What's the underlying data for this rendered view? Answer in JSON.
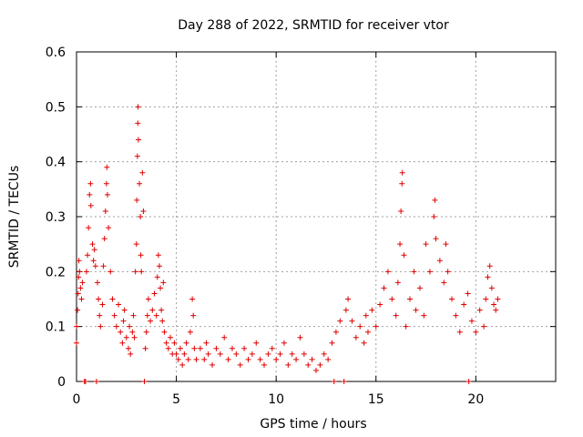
{
  "chart_data": {
    "type": "scatter",
    "title": "Day 288 of 2022, SRMTID for receiver vtor",
    "xlabel": "GPS time / hours",
    "ylabel": "SRMTID / TECUs",
    "xlim": [
      0,
      24
    ],
    "ylim": [
      0,
      0.6
    ],
    "xticks": [
      0,
      5,
      10,
      15,
      20
    ],
    "xtick_labels": [
      "0",
      "5",
      "10",
      "15",
      "20"
    ],
    "yticks": [
      0,
      0.1,
      0.2,
      0.3,
      0.4,
      0.5,
      0.6
    ],
    "ytick_labels": [
      "0",
      "0.1",
      "0.2",
      "0.3",
      "0.4",
      "0.5",
      "0.6"
    ],
    "grid": true,
    "marker": "+",
    "color": "#e00000",
    "series": [
      {
        "name": "SRMTID",
        "points": [
          [
            0.0,
            0.07
          ],
          [
            0.0,
            0.1
          ],
          [
            0.05,
            0.13
          ],
          [
            0.08,
            0.16
          ],
          [
            0.1,
            0.19
          ],
          [
            0.12,
            0.22
          ],
          [
            0.15,
            0.2
          ],
          [
            0.2,
            0.17
          ],
          [
            0.25,
            0.15
          ],
          [
            0.3,
            0.18
          ],
          [
            0.4,
            0.0
          ],
          [
            0.45,
            0.0
          ],
          [
            0.5,
            0.2
          ],
          [
            0.55,
            0.23
          ],
          [
            0.6,
            0.28
          ],
          [
            0.65,
            0.34
          ],
          [
            0.7,
            0.36
          ],
          [
            0.72,
            0.32
          ],
          [
            0.8,
            0.25
          ],
          [
            0.85,
            0.22
          ],
          [
            0.9,
            0.24
          ],
          [
            0.95,
            0.21
          ],
          [
            1.0,
            0.0
          ],
          [
            1.05,
            0.18
          ],
          [
            1.1,
            0.15
          ],
          [
            1.15,
            0.12
          ],
          [
            1.2,
            0.1
          ],
          [
            1.3,
            0.14
          ],
          [
            1.35,
            0.21
          ],
          [
            1.4,
            0.26
          ],
          [
            1.45,
            0.31
          ],
          [
            1.5,
            0.36
          ],
          [
            1.52,
            0.39
          ],
          [
            1.55,
            0.34
          ],
          [
            1.6,
            0.28
          ],
          [
            1.7,
            0.2
          ],
          [
            1.8,
            0.15
          ],
          [
            1.9,
            0.12
          ],
          [
            2.0,
            0.1
          ],
          [
            2.1,
            0.14
          ],
          [
            2.2,
            0.09
          ],
          [
            2.3,
            0.07
          ],
          [
            2.35,
            0.11
          ],
          [
            2.4,
            0.13
          ],
          [
            2.5,
            0.08
          ],
          [
            2.6,
            0.06
          ],
          [
            2.65,
            0.1
          ],
          [
            2.7,
            0.05
          ],
          [
            2.8,
            0.09
          ],
          [
            2.85,
            0.12
          ],
          [
            2.9,
            0.08
          ],
          [
            2.95,
            0.2
          ],
          [
            3.0,
            0.25
          ],
          [
            3.02,
            0.33
          ],
          [
            3.05,
            0.41
          ],
          [
            3.07,
            0.47
          ],
          [
            3.08,
            0.5
          ],
          [
            3.1,
            0.44
          ],
          [
            3.15,
            0.36
          ],
          [
            3.2,
            0.3
          ],
          [
            3.22,
            0.23
          ],
          [
            3.25,
            0.2
          ],
          [
            3.3,
            0.38
          ],
          [
            3.35,
            0.31
          ],
          [
            3.4,
            0.0
          ],
          [
            3.45,
            0.06
          ],
          [
            3.5,
            0.09
          ],
          [
            3.55,
            0.12
          ],
          [
            3.6,
            0.15
          ],
          [
            3.7,
            0.11
          ],
          [
            3.8,
            0.13
          ],
          [
            3.9,
            0.16
          ],
          [
            4.0,
            0.12
          ],
          [
            4.05,
            0.19
          ],
          [
            4.1,
            0.23
          ],
          [
            4.15,
            0.21
          ],
          [
            4.2,
            0.17
          ],
          [
            4.25,
            0.13
          ],
          [
            4.3,
            0.11
          ],
          [
            4.35,
            0.18
          ],
          [
            4.4,
            0.09
          ],
          [
            4.5,
            0.07
          ],
          [
            4.6,
            0.06
          ],
          [
            4.7,
            0.08
          ],
          [
            4.8,
            0.05
          ],
          [
            4.9,
            0.07
          ],
          [
            5.0,
            0.05
          ],
          [
            5.1,
            0.04
          ],
          [
            5.2,
            0.06
          ],
          [
            5.3,
            0.03
          ],
          [
            5.4,
            0.05
          ],
          [
            5.5,
            0.07
          ],
          [
            5.6,
            0.04
          ],
          [
            5.7,
            0.09
          ],
          [
            5.8,
            0.15
          ],
          [
            5.85,
            0.12
          ],
          [
            5.9,
            0.06
          ],
          [
            6.0,
            0.04
          ],
          [
            6.2,
            0.06
          ],
          [
            6.4,
            0.04
          ],
          [
            6.5,
            0.07
          ],
          [
            6.6,
            0.05
          ],
          [
            6.8,
            0.03
          ],
          [
            7.0,
            0.06
          ],
          [
            7.2,
            0.05
          ],
          [
            7.4,
            0.08
          ],
          [
            7.6,
            0.04
          ],
          [
            7.8,
            0.06
          ],
          [
            8.0,
            0.05
          ],
          [
            8.2,
            0.03
          ],
          [
            8.4,
            0.06
          ],
          [
            8.6,
            0.04
          ],
          [
            8.8,
            0.05
          ],
          [
            9.0,
            0.07
          ],
          [
            9.2,
            0.04
          ],
          [
            9.4,
            0.03
          ],
          [
            9.6,
            0.05
          ],
          [
            9.8,
            0.06
          ],
          [
            10.0,
            0.04
          ],
          [
            10.2,
            0.05
          ],
          [
            10.4,
            0.07
          ],
          [
            10.6,
            0.03
          ],
          [
            10.8,
            0.05
          ],
          [
            11.0,
            0.04
          ],
          [
            11.2,
            0.08
          ],
          [
            11.4,
            0.05
          ],
          [
            11.6,
            0.03
          ],
          [
            11.8,
            0.04
          ],
          [
            12.0,
            0.02
          ],
          [
            12.2,
            0.03
          ],
          [
            12.4,
            0.05
          ],
          [
            12.6,
            0.04
          ],
          [
            12.8,
            0.07
          ],
          [
            12.9,
            0.0
          ],
          [
            13.0,
            0.09
          ],
          [
            13.2,
            0.11
          ],
          [
            13.4,
            0.0
          ],
          [
            13.5,
            0.13
          ],
          [
            13.6,
            0.15
          ],
          [
            13.8,
            0.11
          ],
          [
            14.0,
            0.08
          ],
          [
            14.2,
            0.1
          ],
          [
            14.4,
            0.07
          ],
          [
            14.5,
            0.12
          ],
          [
            14.6,
            0.09
          ],
          [
            14.8,
            0.13
          ],
          [
            15.0,
            0.1
          ],
          [
            15.2,
            0.14
          ],
          [
            15.4,
            0.17
          ],
          [
            15.6,
            0.2
          ],
          [
            15.8,
            0.15
          ],
          [
            16.0,
            0.12
          ],
          [
            16.1,
            0.18
          ],
          [
            16.2,
            0.25
          ],
          [
            16.25,
            0.31
          ],
          [
            16.3,
            0.36
          ],
          [
            16.32,
            0.38
          ],
          [
            16.4,
            0.23
          ],
          [
            16.5,
            0.1
          ],
          [
            16.7,
            0.15
          ],
          [
            16.9,
            0.2
          ],
          [
            17.0,
            0.13
          ],
          [
            17.2,
            0.17
          ],
          [
            17.4,
            0.12
          ],
          [
            17.5,
            0.25
          ],
          [
            17.7,
            0.2
          ],
          [
            17.9,
            0.3
          ],
          [
            17.95,
            0.33
          ],
          [
            18.0,
            0.26
          ],
          [
            18.2,
            0.22
          ],
          [
            18.4,
            0.18
          ],
          [
            18.5,
            0.25
          ],
          [
            18.6,
            0.2
          ],
          [
            18.8,
            0.15
          ],
          [
            19.0,
            0.12
          ],
          [
            19.2,
            0.09
          ],
          [
            19.4,
            0.14
          ],
          [
            19.6,
            0.16
          ],
          [
            19.65,
            0.0
          ],
          [
            19.8,
            0.11
          ],
          [
            20.0,
            0.09
          ],
          [
            20.2,
            0.13
          ],
          [
            20.4,
            0.1
          ],
          [
            20.5,
            0.15
          ],
          [
            20.6,
            0.19
          ],
          [
            20.7,
            0.21
          ],
          [
            20.8,
            0.17
          ],
          [
            20.9,
            0.14
          ],
          [
            21.0,
            0.13
          ],
          [
            21.1,
            0.15
          ]
        ]
      }
    ]
  }
}
